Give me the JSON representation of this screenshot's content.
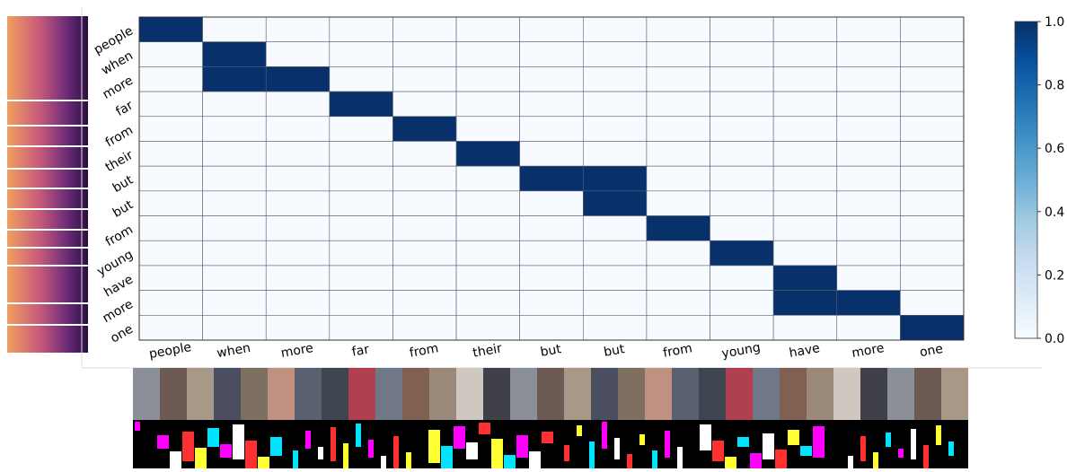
{
  "chart_data": {
    "type": "heatmap",
    "x_categories": [
      "people",
      "when",
      "more",
      "far",
      "from",
      "their",
      "but",
      "but",
      "from",
      "young",
      "have",
      "more",
      "one"
    ],
    "y_categories": [
      "people",
      "when",
      "more",
      "far",
      "from",
      "their",
      "but",
      "but",
      "from",
      "young",
      "have",
      "more",
      "one"
    ],
    "values": [
      [
        1,
        0,
        0,
        0,
        0,
        0,
        0,
        0,
        0,
        0,
        0,
        0,
        0
      ],
      [
        0,
        1,
        0,
        0,
        0,
        0,
        0,
        0,
        0,
        0,
        0,
        0,
        0
      ],
      [
        0,
        1,
        1,
        0,
        0,
        0,
        0,
        0,
        0,
        0,
        0,
        0,
        0
      ],
      [
        0,
        0,
        0,
        1,
        0,
        0,
        0,
        0,
        0,
        0,
        0,
        0,
        0
      ],
      [
        0,
        0,
        0,
        0,
        1,
        0,
        0,
        0,
        0,
        0,
        0,
        0,
        0
      ],
      [
        0,
        0,
        0,
        0,
        0,
        1,
        0,
        0,
        0,
        0,
        0,
        0,
        0
      ],
      [
        0,
        0,
        0,
        0,
        0,
        0,
        1,
        1,
        0,
        0,
        0,
        0,
        0
      ],
      [
        0,
        0,
        0,
        0,
        0,
        0,
        0,
        1,
        0,
        0,
        0,
        0,
        0
      ],
      [
        0,
        0,
        0,
        0,
        0,
        0,
        0,
        0,
        1,
        0,
        0,
        0,
        0
      ],
      [
        0,
        0,
        0,
        0,
        0,
        0,
        0,
        0,
        0,
        1,
        0,
        0,
        0
      ],
      [
        0,
        0,
        0,
        0,
        0,
        0,
        0,
        0,
        0,
        0,
        1,
        0,
        0
      ],
      [
        0,
        0,
        0,
        0,
        0,
        0,
        0,
        0,
        0,
        0,
        1,
        1,
        0
      ],
      [
        0,
        0,
        0,
        0,
        0,
        0,
        0,
        0,
        0,
        0,
        0,
        0,
        1
      ]
    ],
    "colormap": [
      "#f7fbff",
      "#deebf7",
      "#c6dbef",
      "#9ecae1",
      "#6baed6",
      "#4292c6",
      "#2171b5",
      "#08519c",
      "#08306b"
    ],
    "zlim": [
      0,
      1
    ],
    "zticks": [
      {
        "value": 0,
        "label": "0.0"
      },
      {
        "value": 0.2,
        "label": "0.2"
      },
      {
        "value": 0.4,
        "label": "0.4"
      },
      {
        "value": 0.6,
        "label": "0.6"
      },
      {
        "value": 0.8,
        "label": "0.8"
      },
      {
        "value": 1,
        "label": "1.0"
      }
    ]
  }
}
